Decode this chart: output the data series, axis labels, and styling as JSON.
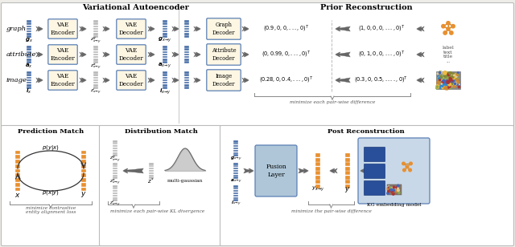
{
  "bg_color": "#eeede8",
  "panel_fill": "#ffffff",
  "panel_edge": "#bbbbbb",
  "box_fill": "#fdf6e3",
  "box_edge": "#5a7fb5",
  "blue_color": "#4a70a8",
  "gray_color": "#b8b8b8",
  "orange_color": "#e89030",
  "fusion_fill": "#aec6d8",
  "kg_fill": "#c8d8e8",
  "top_title_vae": "Variational Autoencoder",
  "top_title_prior": "Prior Reconstruction",
  "bot_title_pred": "Prediction Match",
  "bot_title_dist": "Distribution Match",
  "bot_title_post": "Post Reconstruction",
  "row_labels": [
    "graph",
    "attribute",
    "image"
  ],
  "gx_labels": [
    "$\\boldsymbol{g}_x$",
    "$\\boldsymbol{a}_x$",
    "$\\boldsymbol{i}_x$"
  ],
  "zg_labels": [
    "$z^g_{x\\!\\to\\!y}$",
    "$z^a_{x\\!\\to\\!y}$",
    "$z^i_{x\\!\\to\\!y}$"
  ],
  "gxy_labels": [
    "$\\boldsymbol{g}_{x\\!\\to\\!y}$",
    "$\\boldsymbol{a}_{x\\!\\to\\!y}$",
    "$\\boldsymbol{i}_{x\\!\\to\\!y}$"
  ],
  "dec_labels": [
    "Graph\nDecoder",
    "Attribute\nDecoder",
    "Image\nDecoder"
  ],
  "out1": [
    "$(0.9,0,0,...,0)^T$",
    "$(0,0.99,0,...,0)^T$",
    "$(0.28,0,0.4,...,0)^T$"
  ],
  "out2": [
    "$(1,0,0,0,...,0)^T$",
    "$(0,1,0,0,...,0)^T$",
    "$(0.3,0,0.5,....,0)^T$"
  ],
  "minimize_pairwise": "minimize each pair-wise difference",
  "minimize_contrastive": "minimize contrastive\nentity alignment loss",
  "minimize_kl": "minimize each pair-wise KL divergence",
  "minimize_post": "minimize the pair-wise difference",
  "multi_gaussian": "multi-gaussian",
  "kg_label": "KG embedding model",
  "label_text": "label\ntext\ntitle\n...",
  "dm_labs": [
    "$z^g_{x\\!\\to\\!y}$",
    "$z^a_{x\\!\\to\\!y}$",
    "$z^i_{x\\!\\to\\!y}$"
  ],
  "pr_labs": [
    "$\\boldsymbol{g}_{x\\!\\to\\!y}$",
    "$\\boldsymbol{a}_{x\\!\\to\\!y}$",
    "$\\boldsymbol{i}_{x\\!\\to\\!y}$"
  ]
}
